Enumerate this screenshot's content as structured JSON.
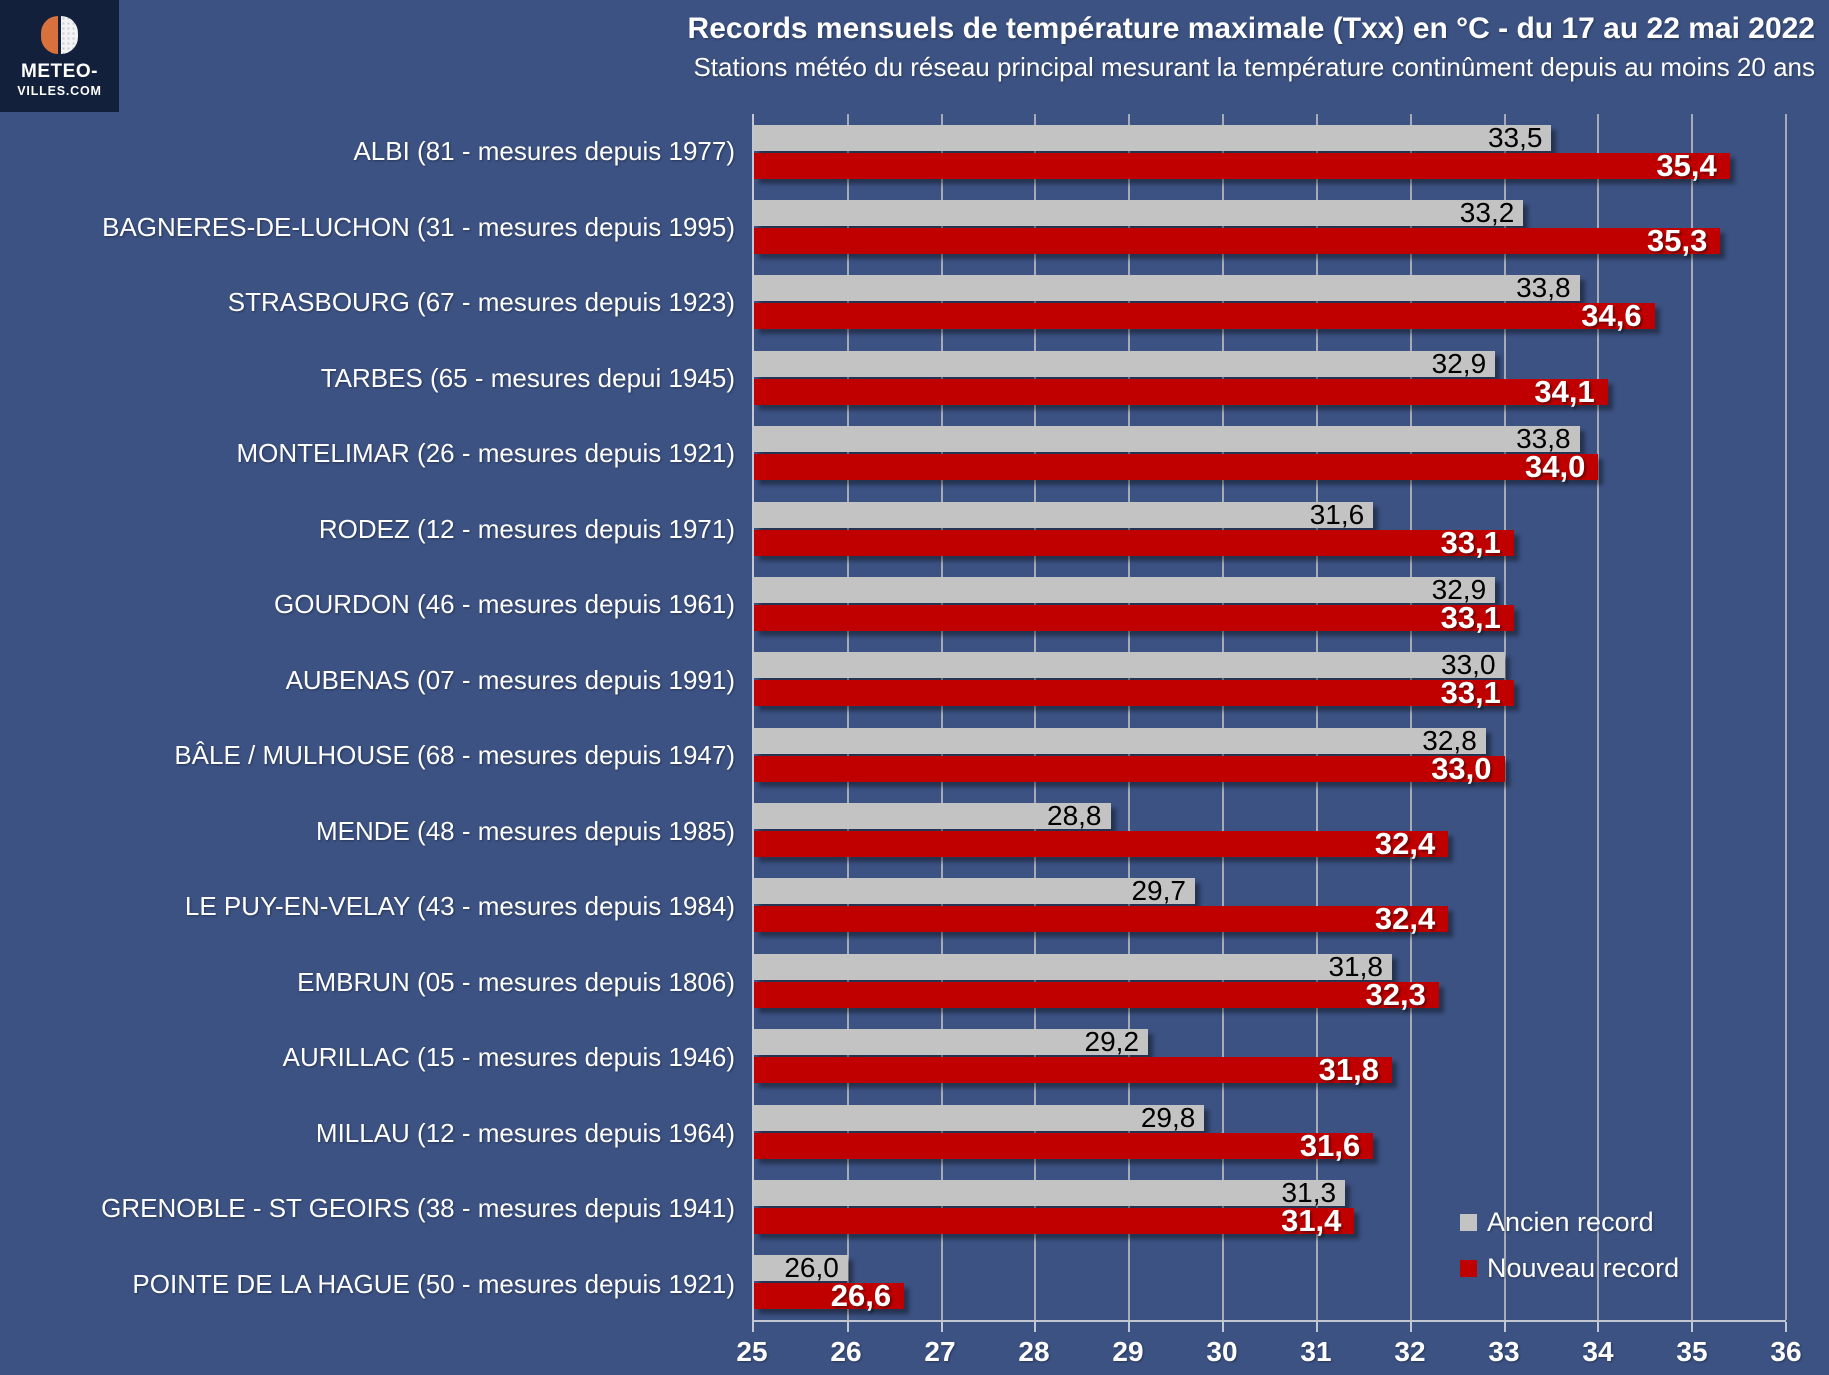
{
  "logo": {
    "line1": "METEO-",
    "line2": "VILLES.COM",
    "colors": {
      "background": "#12203C",
      "orange": "#D9713D",
      "white": "#F3F3F3"
    }
  },
  "header": {
    "title": "Records mensuels de température maximale (Txx) en °C - du 17 au 22 mai 2022",
    "subtitle": "Stations météo du réseau principal mesurant la température continûment depuis au moins 20 ans"
  },
  "legend": [
    {
      "label": "Ancien record",
      "color": "#C3C3C3"
    },
    {
      "label": "Nouveau record",
      "color": "#C00000"
    }
  ],
  "colors": {
    "page_background": "#3C5283",
    "old_record_bar": "#C3C3C3",
    "new_record_bar": "#C00000",
    "gridline": "#A6ABB7",
    "axis": "#C2C7D1",
    "text": "#FFFFFF"
  },
  "chart_data": {
    "type": "bar",
    "orientation": "horizontal",
    "title": "Records mensuels de température maximale (Txx) en °C - du 17 au 22 mai 2022",
    "subtitle": "Stations météo du réseau principal mesurant la température continûment depuis au moins 20 ans",
    "xlabel": "",
    "ylabel": "",
    "xlim": [
      25,
      36
    ],
    "x_ticks": [
      "25",
      "26",
      "27",
      "28",
      "29",
      "30",
      "31",
      "32",
      "33",
      "34",
      "35",
      "36"
    ],
    "grid": true,
    "legend_position": "bottom-right",
    "categories": [
      "ALBI (81 - mesures depuis 1977)",
      "BAGNERES-DE-LUCHON (31 - mesures depuis 1995)",
      "STRASBOURG (67 - mesures depuis 1923)",
      "TARBES (65 - mesures depui 1945)",
      "MONTELIMAR (26 - mesures depuis 1921)",
      "RODEZ (12 - mesures depuis 1971)",
      "GOURDON (46 - mesures depuis 1961)",
      "AUBENAS (07 - mesures depuis 1991)",
      "BÂLE / MULHOUSE (68 - mesures depuis 1947)",
      "MENDE (48 - mesures depuis 1985)",
      "LE PUY-EN-VELAY (43 - mesures depuis 1984)",
      "EMBRUN (05 - mesures depuis 1806)",
      "AURILLAC (15 - mesures depuis 1946)",
      "MILLAU (12 - mesures depuis 1964)",
      "GRENOBLE - ST GEOIRS (38 - mesures depuis 1941)",
      "POINTE DE LA HAGUE (50 - mesures depuis 1921)"
    ],
    "series": [
      {
        "name": "Ancien record",
        "color": "#C3C3C3",
        "values": [
          33.5,
          33.2,
          33.8,
          32.9,
          33.8,
          31.6,
          32.9,
          33.0,
          32.8,
          28.8,
          29.7,
          31.8,
          29.2,
          29.8,
          31.3,
          26.0
        ],
        "labels": [
          "33,5",
          "33,2",
          "33,8",
          "32,9",
          "33,8",
          "31,6",
          "32,9",
          "33,0",
          "32,8",
          "28,8",
          "29,7",
          "31,8",
          "29,2",
          "29,8",
          "31,3",
          "26,0"
        ]
      },
      {
        "name": "Nouveau record",
        "color": "#C00000",
        "values": [
          35.4,
          35.3,
          34.6,
          34.1,
          34.0,
          33.1,
          33.1,
          33.1,
          33.0,
          32.4,
          32.4,
          32.3,
          31.8,
          31.6,
          31.4,
          26.6
        ],
        "labels": [
          "35,4",
          "35,3",
          "34,6",
          "34,1",
          "34,0",
          "33,1",
          "33,1",
          "33,1",
          "33,0",
          "32,4",
          "32,4",
          "32,3",
          "31,8",
          "31,6",
          "31,4",
          "26,6"
        ]
      }
    ]
  }
}
